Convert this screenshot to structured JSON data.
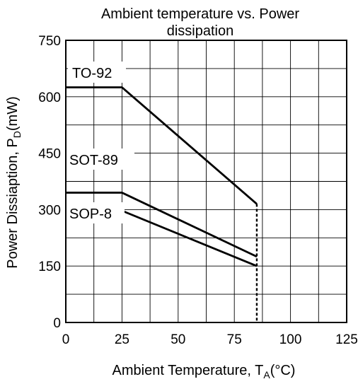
{
  "chart_data": {
    "type": "line",
    "title_line1": "Ambient temperature vs. Power",
    "title_line2": "dissipation",
    "xlabel": "Ambient Temperature, T",
    "xlabel_sub": "A",
    "xlabel_unit": "(°C)",
    "ylabel": "Power Dissiaption, P",
    "ylabel_sub": "D",
    "ylabel_unit": "(mW)",
    "xlim": [
      0,
      125
    ],
    "ylim": [
      0,
      750
    ],
    "x_ticks": [
      0,
      25,
      50,
      75,
      100,
      125
    ],
    "y_ticks": [
      0,
      150,
      300,
      450,
      600,
      750
    ],
    "x_grid_step": 12.5,
    "y_grid_step": 75,
    "grid": true,
    "series": [
      {
        "name": "TO-92",
        "x": [
          0,
          25,
          85
        ],
        "y": [
          625,
          625,
          315
        ]
      },
      {
        "name": "SOT-89",
        "x": [
          0,
          25,
          85
        ],
        "y": [
          345,
          345,
          175
        ]
      },
      {
        "name": "SOP-8",
        "x": [
          0,
          25,
          85
        ],
        "y": [
          297,
          297,
          150
        ]
      }
    ],
    "dashed_limit": {
      "x": 85,
      "y_from": 0,
      "y_to": 315
    }
  }
}
